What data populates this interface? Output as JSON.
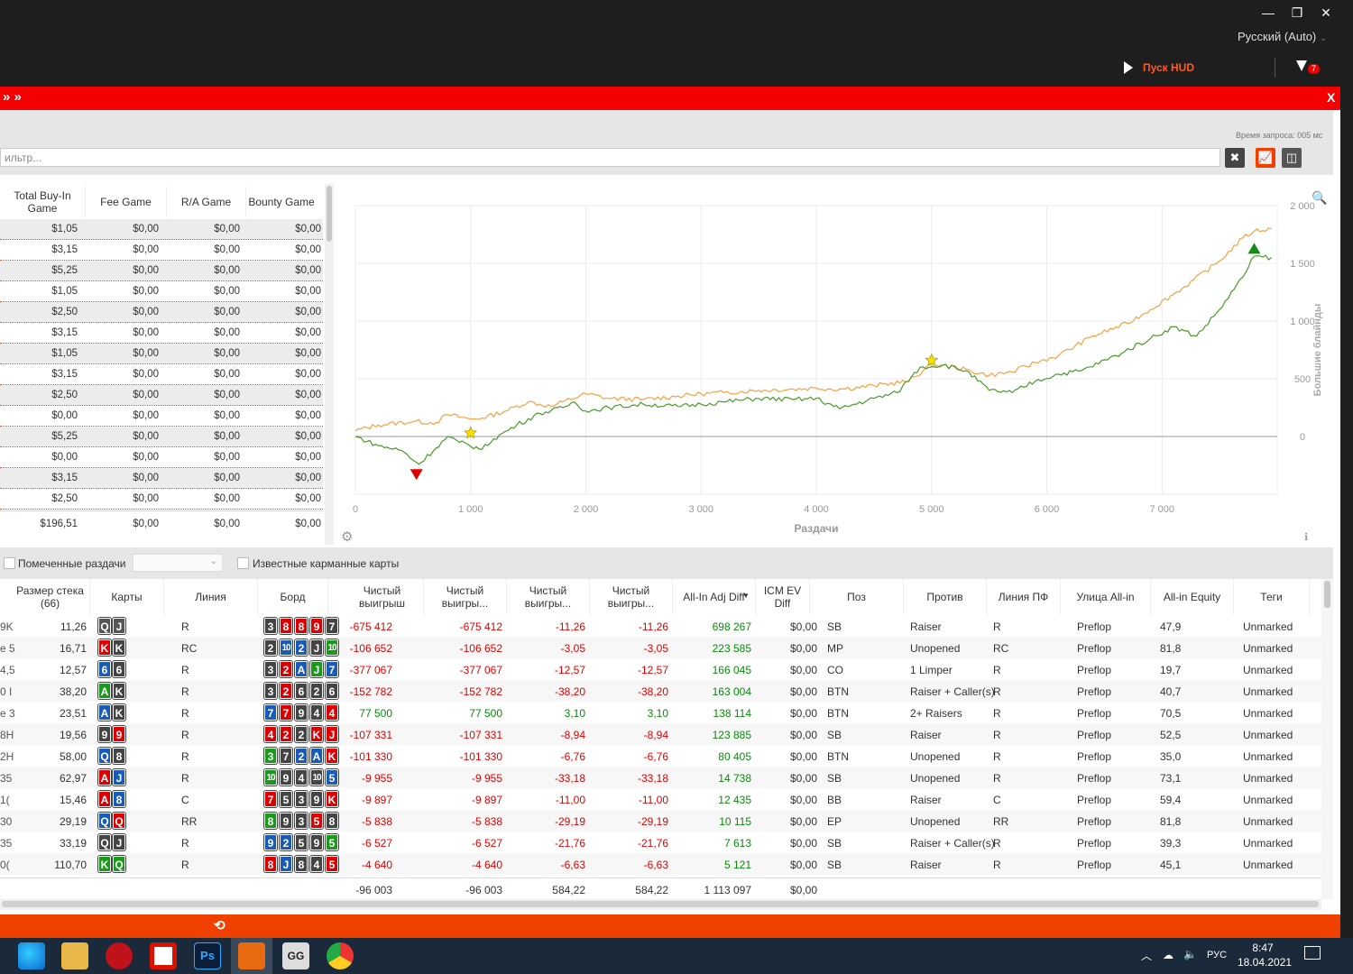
{
  "window": {
    "minimize": "—",
    "restore": "❐",
    "close": "✕"
  },
  "header": {
    "language": "Русский (Auto)",
    "hud_label": "Пуск HUD",
    "filter_count": "7"
  },
  "redbar": {
    "left": "» »",
    "close": "X"
  },
  "filter": {
    "query_time": "Время запроса: 005 мс",
    "placeholder": "ильтр..."
  },
  "left_table": {
    "headers": [
      "Total Buy-In Game",
      "Fee Game",
      "R/A Game",
      "Bounty Game"
    ],
    "rows": [
      [
        "$1,05",
        "$0,00",
        "$0,00",
        "$0,00"
      ],
      [
        "$3,15",
        "$0,00",
        "$0,00",
        "$0,00"
      ],
      [
        "$5,25",
        "$0,00",
        "$0,00",
        "$0,00"
      ],
      [
        "$1,05",
        "$0,00",
        "$0,00",
        "$0,00"
      ],
      [
        "$2,50",
        "$0,00",
        "$0,00",
        "$0,00"
      ],
      [
        "$3,15",
        "$0,00",
        "$0,00",
        "$0,00"
      ],
      [
        "$1,05",
        "$0,00",
        "$0,00",
        "$0,00"
      ],
      [
        "$3,15",
        "$0,00",
        "$0,00",
        "$0,00"
      ],
      [
        "$2,50",
        "$0,00",
        "$0,00",
        "$0,00"
      ],
      [
        "$0,00",
        "$0,00",
        "$0,00",
        "$0,00"
      ],
      [
        "$5,25",
        "$0,00",
        "$0,00",
        "$0,00"
      ],
      [
        "$0,00",
        "$0,00",
        "$0,00",
        "$0,00"
      ],
      [
        "$3,15",
        "$0,00",
        "$0,00",
        "$0,00"
      ],
      [
        "$2,50",
        "$0,00",
        "$0,00",
        "$0,00"
      ]
    ],
    "totals": [
      "$196,51",
      "$0,00",
      "$0,00",
      "$0,00"
    ]
  },
  "chart_data": {
    "type": "line",
    "xlabel": "Раздачи",
    "ylabel": "Большие блайнды",
    "xlim": [
      0,
      8000
    ],
    "ylim": [
      -500,
      2000
    ],
    "xticks": [
      "0",
      "1 000",
      "2 000",
      "3 000",
      "4 000",
      "5 000",
      "6 000",
      "7 000"
    ],
    "yticks": [
      "2 000",
      "1 500",
      "1 000",
      "500",
      "0"
    ],
    "series": [
      {
        "color": "#f7a040",
        "points": [
          [
            0,
            50
          ],
          [
            200,
            100
          ],
          [
            500,
            130
          ],
          [
            700,
            120
          ],
          [
            800,
            190
          ],
          [
            1000,
            150
          ],
          [
            1100,
            160
          ],
          [
            1300,
            220
          ],
          [
            1500,
            300
          ],
          [
            1700,
            260
          ],
          [
            1800,
            300
          ],
          [
            2000,
            370
          ],
          [
            2200,
            330
          ],
          [
            2500,
            320
          ],
          [
            2800,
            350
          ],
          [
            3000,
            370
          ],
          [
            3200,
            380
          ],
          [
            3500,
            400
          ],
          [
            3800,
            410
          ],
          [
            4000,
            420
          ],
          [
            4200,
            410
          ],
          [
            4500,
            440
          ],
          [
            4800,
            480
          ],
          [
            5000,
            620
          ],
          [
            5200,
            600
          ],
          [
            5500,
            530
          ],
          [
            5700,
            560
          ],
          [
            5900,
            640
          ],
          [
            6100,
            700
          ],
          [
            6400,
            870
          ],
          [
            6700,
            980
          ],
          [
            6900,
            1100
          ],
          [
            7200,
            1300
          ],
          [
            7500,
            1520
          ],
          [
            7700,
            1720
          ],
          [
            7800,
            1780
          ],
          [
            7950,
            1800
          ]
        ]
      },
      {
        "color": "#4a9a28",
        "points": [
          [
            0,
            0
          ],
          [
            200,
            -80
          ],
          [
            400,
            -120
          ],
          [
            550,
            -240
          ],
          [
            700,
            -100
          ],
          [
            800,
            0
          ],
          [
            900,
            -50
          ],
          [
            1100,
            -110
          ],
          [
            1200,
            -20
          ],
          [
            1400,
            100
          ],
          [
            1600,
            200
          ],
          [
            1800,
            250
          ],
          [
            1900,
            300
          ],
          [
            2000,
            220
          ],
          [
            2200,
            250
          ],
          [
            2500,
            280
          ],
          [
            2800,
            260
          ],
          [
            3000,
            280
          ],
          [
            3200,
            300
          ],
          [
            3500,
            330
          ],
          [
            3800,
            320
          ],
          [
            4000,
            330
          ],
          [
            4200,
            240
          ],
          [
            4500,
            330
          ],
          [
            4700,
            380
          ],
          [
            4900,
            600
          ],
          [
            5100,
            620
          ],
          [
            5300,
            570
          ],
          [
            5500,
            400
          ],
          [
            5700,
            380
          ],
          [
            5900,
            480
          ],
          [
            6100,
            540
          ],
          [
            6300,
            570
          ],
          [
            6600,
            700
          ],
          [
            6900,
            850
          ],
          [
            7100,
            950
          ],
          [
            7300,
            870
          ],
          [
            7500,
            1100
          ],
          [
            7700,
            1380
          ],
          [
            7800,
            1560
          ],
          [
            7950,
            1550
          ]
        ]
      }
    ],
    "markers": [
      {
        "type": "min",
        "x": 530,
        "y": -330,
        "color": "#e00000"
      },
      {
        "type": "star",
        "x": 1000,
        "y": 30,
        "color": "#f5e000"
      },
      {
        "type": "star",
        "x": 5000,
        "y": 660,
        "color": "#f5e000"
      },
      {
        "type": "max",
        "x": 7800,
        "y": 1630,
        "color": "#188a18"
      }
    ]
  },
  "checks": {
    "marked": "Помеченные раздачи",
    "known": "Известные карманные карты"
  },
  "hands": {
    "headers": [
      "Размер стека (66)",
      "Карты",
      "Линия",
      "Борд",
      "Чистый выигрыш",
      "Чистый выигры...",
      "Чистый выигры...",
      "Чистый выигры...",
      "All-In Adj Diff",
      "ICM EV Diff",
      "Поз",
      "Против",
      "Линия ПФ",
      "Улица All-in",
      "All-in Equity",
      "Теги"
    ],
    "rows": [
      {
        "s": "9K",
        "stack": "11,26",
        "cards": [
          [
            "Q",
            "#555"
          ],
          [
            "J",
            "#555"
          ]
        ],
        "line": "R",
        "board": [
          [
            "3",
            "#444"
          ],
          [
            "8",
            "#d00"
          ],
          [
            "8",
            "#d00"
          ],
          [
            "9",
            "#d00"
          ],
          [
            "7",
            "#444"
          ]
        ],
        "net": "-675 412",
        "net2": "-675 412",
        "bb": "-11,26",
        "bb2": "-11,26",
        "adj": "698 267",
        "icm": "$0,00",
        "pos": "SB",
        "vs": "Raiser",
        "pf": "R",
        "street": "Preflop",
        "eq": "47,9",
        "tag": "Unmarked"
      },
      {
        "s": "e 5",
        "stack": "16,71",
        "cards": [
          [
            "K",
            "#d00"
          ],
          [
            "K",
            "#444"
          ]
        ],
        "line": "RC",
        "board": [
          [
            "2",
            "#444"
          ],
          [
            "10",
            "#1a5bb8"
          ],
          [
            "2",
            "#1a5bb8"
          ],
          [
            "J",
            "#444"
          ],
          [
            "10",
            "#1a9a1a"
          ]
        ],
        "net": "-106 652",
        "net2": "-106 652",
        "bb": "-3,05",
        "bb2": "-3,05",
        "adj": "223 585",
        "icm": "$0,00",
        "pos": "MP",
        "vs": "Unopened",
        "pf": "RC",
        "street": "Preflop",
        "eq": "81,8",
        "tag": "Unmarked"
      },
      {
        "s": "4,5",
        "stack": "12,57",
        "cards": [
          [
            "6",
            "#1a5bb8"
          ],
          [
            "6",
            "#444"
          ]
        ],
        "line": "R",
        "board": [
          [
            "3",
            "#444"
          ],
          [
            "2",
            "#d00"
          ],
          [
            "A",
            "#1a5bb8"
          ],
          [
            "J",
            "#1a9a1a"
          ],
          [
            "7",
            "#1a5bb8"
          ]
        ],
        "net": "-377 067",
        "net2": "-377 067",
        "bb": "-12,57",
        "bb2": "-12,57",
        "adj": "166 045",
        "icm": "$0,00",
        "pos": "CO",
        "vs": "1 Limper",
        "pf": "R",
        "street": "Preflop",
        "eq": "19,7",
        "tag": "Unmarked"
      },
      {
        "s": "0 I",
        "stack": "38,20",
        "cards": [
          [
            "A",
            "#1a9a1a"
          ],
          [
            "K",
            "#444"
          ]
        ],
        "line": "R",
        "board": [
          [
            "3",
            "#444"
          ],
          [
            "2",
            "#d00"
          ],
          [
            "6",
            "#444"
          ],
          [
            "2",
            "#444"
          ],
          [
            "6",
            "#444"
          ]
        ],
        "net": "-152 782",
        "net2": "-152 782",
        "bb": "-38,20",
        "bb2": "-38,20",
        "adj": "163 004",
        "icm": "$0,00",
        "pos": "BTN",
        "vs": "Raiser + Caller(s)",
        "pf": "R",
        "street": "Preflop",
        "eq": "40,7",
        "tag": "Unmarked"
      },
      {
        "s": "e 3",
        "stack": "23,51",
        "cards": [
          [
            "A",
            "#1a5bb8"
          ],
          [
            "K",
            "#444"
          ]
        ],
        "line": "R",
        "board": [
          [
            "7",
            "#1a5bb8"
          ],
          [
            "7",
            "#d00"
          ],
          [
            "9",
            "#444"
          ],
          [
            "4",
            "#444"
          ],
          [
            "4",
            "#d00"
          ]
        ],
        "net": "77 500",
        "net2": "77 500",
        "bb": "3,10",
        "bb2": "3,10",
        "adj": "138 114",
        "icm": "$0,00",
        "pos": "BTN",
        "vs": "2+ Raisers",
        "pf": "R",
        "street": "Preflop",
        "eq": "70,5",
        "tag": "Unmarked"
      },
      {
        "s": "8H",
        "stack": "19,56",
        "cards": [
          [
            "9",
            "#444"
          ],
          [
            "9",
            "#d00"
          ]
        ],
        "line": "R",
        "board": [
          [
            "4",
            "#d00"
          ],
          [
            "2",
            "#d00"
          ],
          [
            "2",
            "#444"
          ],
          [
            "K",
            "#d00"
          ],
          [
            "J",
            "#d00"
          ]
        ],
        "net": "-107 331",
        "net2": "-107 331",
        "bb": "-8,94",
        "bb2": "-8,94",
        "adj": "123 885",
        "icm": "$0,00",
        "pos": "SB",
        "vs": "Raiser",
        "pf": "R",
        "street": "Preflop",
        "eq": "52,5",
        "tag": "Unmarked"
      },
      {
        "s": "2H",
        "stack": "58,00",
        "cards": [
          [
            "Q",
            "#1a5bb8"
          ],
          [
            "8",
            "#444"
          ]
        ],
        "line": "R",
        "board": [
          [
            "3",
            "#1a9a1a"
          ],
          [
            "7",
            "#444"
          ],
          [
            "2",
            "#1a5bb8"
          ],
          [
            "A",
            "#1a5bb8"
          ],
          [
            "K",
            "#d00"
          ]
        ],
        "net": "-101 330",
        "net2": "-101 330",
        "bb": "-6,76",
        "bb2": "-6,76",
        "adj": "80 405",
        "icm": "$0,00",
        "pos": "BTN",
        "vs": "Unopened",
        "pf": "R",
        "street": "Preflop",
        "eq": "35,0",
        "tag": "Unmarked"
      },
      {
        "s": "35",
        "stack": "62,97",
        "cards": [
          [
            "A",
            "#d00"
          ],
          [
            "J",
            "#1a5bb8"
          ]
        ],
        "line": "R",
        "board": [
          [
            "10",
            "#1a9a1a"
          ],
          [
            "9",
            "#444"
          ],
          [
            "4",
            "#444"
          ],
          [
            "10",
            "#444"
          ],
          [
            "5",
            "#1a5bb8"
          ]
        ],
        "net": "-9 955",
        "net2": "-9 955",
        "bb": "-33,18",
        "bb2": "-33,18",
        "adj": "14 738",
        "icm": "$0,00",
        "pos": "SB",
        "vs": "Unopened",
        "pf": "R",
        "street": "Preflop",
        "eq": "73,1",
        "tag": "Unmarked"
      },
      {
        "s": "1(",
        "stack": "15,46",
        "cards": [
          [
            "A",
            "#d00"
          ],
          [
            "8",
            "#1a5bb8"
          ]
        ],
        "line": "C",
        "board": [
          [
            "7",
            "#d00"
          ],
          [
            "5",
            "#444"
          ],
          [
            "3",
            "#444"
          ],
          [
            "9",
            "#444"
          ],
          [
            "K",
            "#d00"
          ]
        ],
        "net": "-9 897",
        "net2": "-9 897",
        "bb": "-11,00",
        "bb2": "-11,00",
        "adj": "12 435",
        "icm": "$0,00",
        "pos": "BB",
        "vs": "Raiser",
        "pf": "C",
        "street": "Preflop",
        "eq": "59,4",
        "tag": "Unmarked"
      },
      {
        "s": "30",
        "stack": "29,19",
        "cards": [
          [
            "Q",
            "#1a5bb8"
          ],
          [
            "Q",
            "#d00"
          ]
        ],
        "line": "RR",
        "board": [
          [
            "8",
            "#1a9a1a"
          ],
          [
            "9",
            "#444"
          ],
          [
            "3",
            "#444"
          ],
          [
            "5",
            "#d00"
          ],
          [
            "8",
            "#444"
          ]
        ],
        "net": "-5 838",
        "net2": "-5 838",
        "bb": "-29,19",
        "bb2": "-29,19",
        "adj": "10 115",
        "icm": "$0,00",
        "pos": "EP",
        "vs": "Unopened",
        "pf": "RR",
        "street": "Preflop",
        "eq": "81,8",
        "tag": "Unmarked"
      },
      {
        "s": "35",
        "stack": "33,19",
        "cards": [
          [
            "Q",
            "#444"
          ],
          [
            "J",
            "#444"
          ]
        ],
        "line": "R",
        "board": [
          [
            "9",
            "#1a5bb8"
          ],
          [
            "2",
            "#1a5bb8"
          ],
          [
            "5",
            "#444"
          ],
          [
            "9",
            "#444"
          ],
          [
            "5",
            "#1a9a1a"
          ]
        ],
        "net": "-6 527",
        "net2": "-6 527",
        "bb": "-21,76",
        "bb2": "-21,76",
        "adj": "7 613",
        "icm": "$0,00",
        "pos": "SB",
        "vs": "Raiser + Caller(s)",
        "pf": "R",
        "street": "Preflop",
        "eq": "39,3",
        "tag": "Unmarked"
      },
      {
        "s": "0(",
        "stack": "110,70",
        "cards": [
          [
            "K",
            "#1a9a1a"
          ],
          [
            "Q",
            "#1a9a1a"
          ]
        ],
        "line": "R",
        "board": [
          [
            "8",
            "#d00"
          ],
          [
            "J",
            "#1a5bb8"
          ],
          [
            "8",
            "#444"
          ],
          [
            "4",
            "#444"
          ],
          [
            "5",
            "#d00"
          ]
        ],
        "net": "-4 640",
        "net2": "-4 640",
        "bb": "-6,63",
        "bb2": "-6,63",
        "adj": "5 121",
        "icm": "$0,00",
        "pos": "SB",
        "vs": "Raiser",
        "pf": "R",
        "street": "Preflop",
        "eq": "45,1",
        "tag": "Unmarked"
      }
    ],
    "totals": {
      "net": "-96 003",
      "net2": "-96 003",
      "bb": "584,22",
      "bb2": "584,22",
      "adj": "1 113 097",
      "icm": "$0,00"
    }
  },
  "taskbar": {
    "lang": "РУС",
    "time": "8:47",
    "date": "18.04.2021"
  }
}
